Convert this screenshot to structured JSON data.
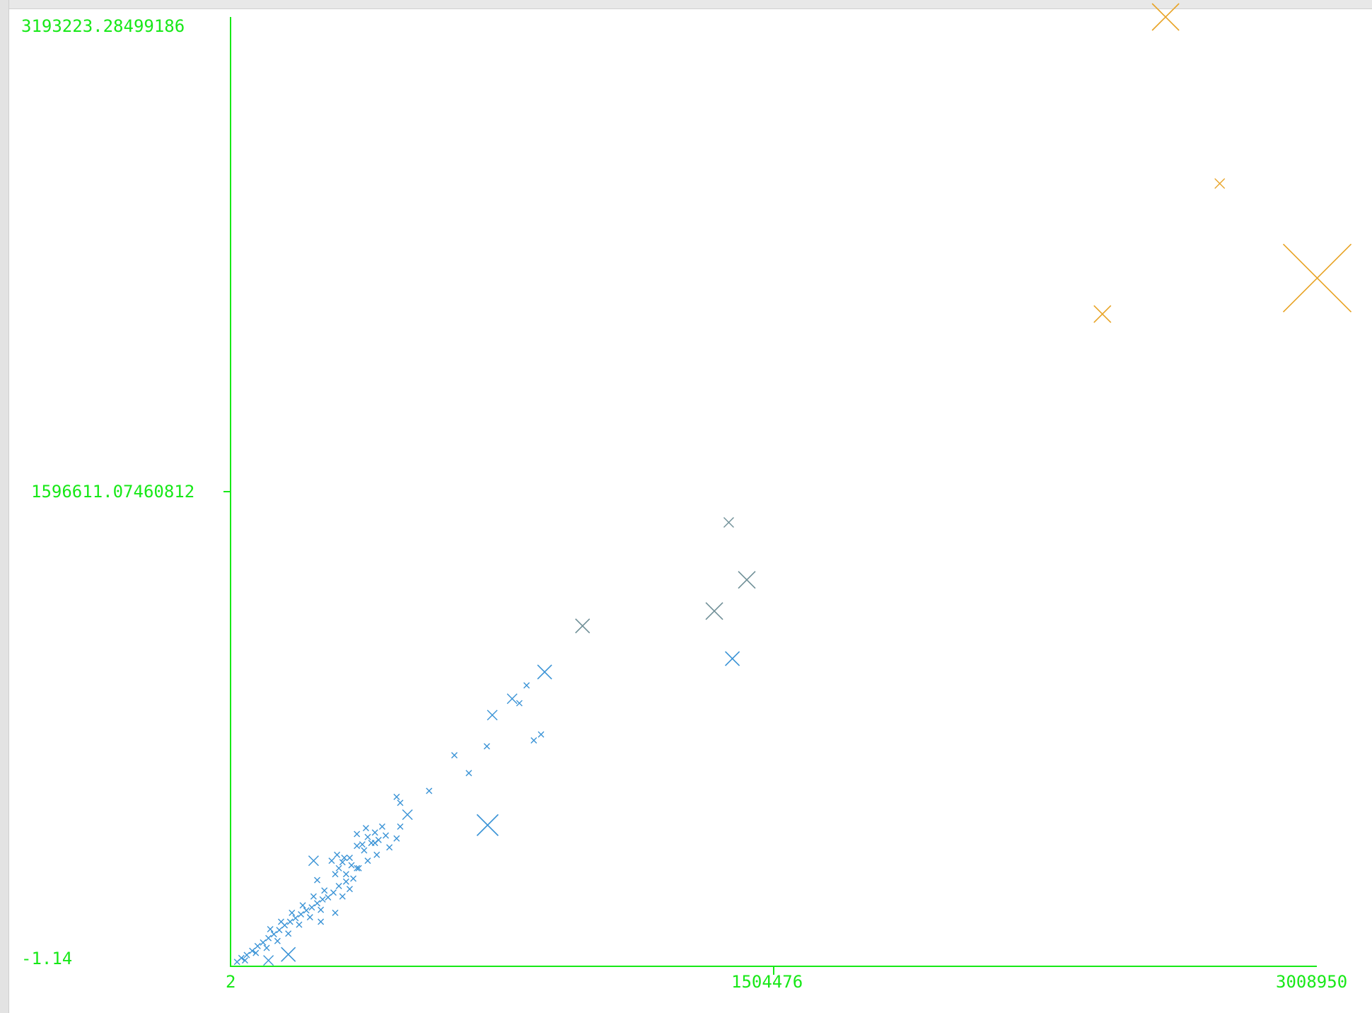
{
  "chart_data": {
    "type": "scatter",
    "title": "",
    "xlabel": "",
    "ylabel": "",
    "xlim": [
      2,
      3008950
    ],
    "ylim": [
      -1.14,
      3193223.28499186
    ],
    "x_ticks": [
      "2",
      "1504476",
      "3008950"
    ],
    "y_ticks": [
      "-1.14",
      "1596611.07460812",
      "3193223.28499186"
    ],
    "grid": false,
    "legend": "none",
    "colors": {
      "axis": "#17e817",
      "blue": "#3a93d6",
      "gray": "#6f8f97",
      "orange": "#e8a325"
    },
    "series": [
      {
        "color": "blue",
        "points": [
          [
            18000,
            15000,
            1
          ],
          [
            30000,
            28000,
            1
          ],
          [
            45000,
            38000,
            1
          ],
          [
            60000,
            52000,
            1
          ],
          [
            75000,
            68000,
            1
          ],
          [
            90000,
            80000,
            1
          ],
          [
            105000,
            95000,
            1
          ],
          [
            120000,
            108000,
            1
          ],
          [
            135000,
            122000,
            1
          ],
          [
            150000,
            138000,
            1
          ],
          [
            165000,
            150000,
            1
          ],
          [
            180000,
            162000,
            1
          ],
          [
            195000,
            175000,
            1
          ],
          [
            210000,
            188000,
            1
          ],
          [
            225000,
            198000,
            1
          ],
          [
            240000,
            212000,
            1
          ],
          [
            255000,
            225000,
            1
          ],
          [
            270000,
            232000,
            1
          ],
          [
            285000,
            248000,
            1
          ],
          [
            40000,
            20000,
            1
          ],
          [
            70000,
            45000,
            1
          ],
          [
            100000,
            62000,
            1
          ],
          [
            130000,
            85000,
            1
          ],
          [
            160000,
            110000,
            1
          ],
          [
            190000,
            140000,
            1
          ],
          [
            220000,
            165000,
            1
          ],
          [
            250000,
            190000,
            1
          ],
          [
            110000,
            125000,
            1
          ],
          [
            140000,
            150000,
            1
          ],
          [
            170000,
            180000,
            1
          ],
          [
            200000,
            205000,
            1
          ],
          [
            230000,
            235000,
            1
          ],
          [
            260000,
            255000,
            1
          ],
          [
            105000,
            20000,
            2
          ],
          [
            160000,
            40000,
            3
          ],
          [
            300000,
            270000,
            1
          ],
          [
            320000,
            285000,
            1
          ],
          [
            340000,
            295000,
            1
          ],
          [
            250000,
            150000,
            1
          ],
          [
            290000,
            180000,
            1
          ],
          [
            310000,
            235000,
            1
          ],
          [
            330000,
            260000,
            1
          ],
          [
            320000,
            310000,
            1
          ],
          [
            350000,
            330000,
            1
          ],
          [
            380000,
            355000,
            1
          ],
          [
            405000,
            375000,
            1
          ],
          [
            440000,
            400000,
            1
          ],
          [
            460000,
            430000,
            1
          ],
          [
            470000,
            470000,
            1
          ],
          [
            290000,
            310000,
            1
          ],
          [
            300000,
            330000,
            1
          ],
          [
            310000,
            350000,
            1
          ],
          [
            335000,
            340000,
            1
          ],
          [
            315000,
            365000,
            1
          ],
          [
            355000,
            330000,
            1
          ],
          [
            370000,
            390000,
            1
          ],
          [
            280000,
            355000,
            1
          ],
          [
            295000,
            375000,
            1
          ],
          [
            375000,
            465000,
            1
          ],
          [
            350000,
            445000,
            1
          ],
          [
            380000,
            435000,
            1
          ],
          [
            400000,
            450000,
            1
          ],
          [
            390000,
            415000,
            1
          ],
          [
            410000,
            425000,
            1
          ],
          [
            420000,
            470000,
            1
          ],
          [
            430000,
            440000,
            1
          ],
          [
            350000,
            405000,
            1
          ],
          [
            365000,
            410000,
            1
          ],
          [
            330000,
            365000,
            1
          ],
          [
            400000,
            415000,
            1
          ],
          [
            230000,
            355000,
            2
          ],
          [
            240000,
            290000,
            1
          ],
          [
            460000,
            570000,
            1
          ],
          [
            470000,
            550000,
            1
          ],
          [
            550000,
            590000,
            1
          ],
          [
            620000,
            710000,
            1
          ],
          [
            660000,
            650000,
            1
          ],
          [
            710000,
            740000,
            1
          ],
          [
            490000,
            510000,
            2
          ],
          [
            725000,
            845000,
            2
          ],
          [
            780000,
            900000,
            2
          ],
          [
            800000,
            885000,
            1
          ],
          [
            820000,
            945000,
            1
          ],
          [
            860000,
            780000,
            1
          ],
          [
            840000,
            760000,
            1
          ],
          [
            870000,
            990000,
            3
          ],
          [
            712000,
            475000,
            5
          ],
          [
            1390000,
            1035000,
            3
          ]
        ]
      },
      {
        "color": "gray",
        "points": [
          [
            975000,
            1145000,
            3
          ],
          [
            1340000,
            1195000,
            4
          ],
          [
            1430000,
            1300000,
            4
          ],
          [
            1380000,
            1493000,
            2
          ]
        ]
      },
      {
        "color": "orange",
        "points": [
          [
            2590000,
            3193223,
            6
          ],
          [
            2740000,
            2633000,
            2
          ],
          [
            2415000,
            2194000,
            4
          ],
          [
            3010000,
            2315000,
            8
          ]
        ]
      }
    ]
  }
}
